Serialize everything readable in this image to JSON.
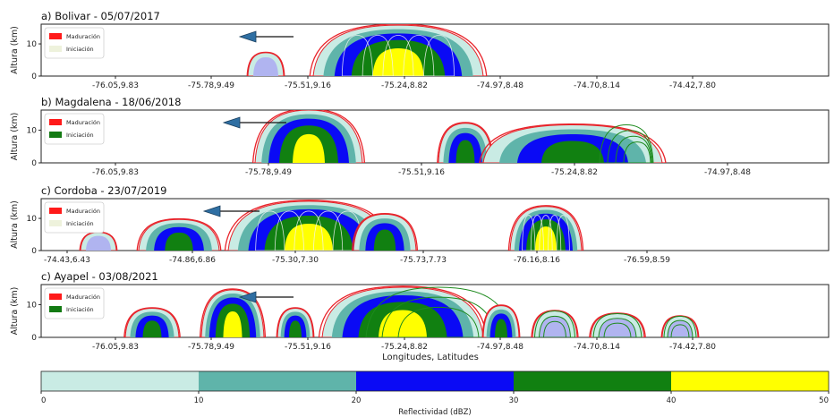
{
  "chart_data": {
    "type": "contour",
    "panels": [
      {
        "title": "a) Bolivar - 05/07/2017",
        "ylabel": "Altura (km)",
        "yticks": [
          "0",
          "10"
        ],
        "xticks": [
          "-76.05,9.83",
          "-75.78,9.49",
          "-75.51,9.16",
          "-75.24,8.82",
          "-74.97,8.48",
          "-74.70,8.14",
          "-74.42,7.80"
        ],
        "legend": [
          {
            "label": "Maduración",
            "color": "#ff1a1a"
          },
          {
            "label": "Iniciación",
            "color": "#eef2dc"
          }
        ],
        "arrow_direction": "left"
      },
      {
        "title": "b) Magdalena - 18/06/2018",
        "ylabel": "Altura (km)",
        "yticks": [
          "0",
          "10"
        ],
        "xticks": [
          "-76.05,9.83",
          "-75.78,9.49",
          "-75.51,9.16",
          "-75.24,8.82",
          "-74.97,8.48"
        ],
        "legend": [
          {
            "label": "Maduración",
            "color": "#ff1a1a"
          },
          {
            "label": "Iniciación",
            "color": "#137a13"
          }
        ],
        "arrow_direction": "left"
      },
      {
        "title": "c) Cordoba - 23/07/2019",
        "ylabel": "Altura (km)",
        "yticks": [
          "0",
          "10"
        ],
        "xticks": [
          "-74.43,6.43",
          "-74.86,6.86",
          "-75.30,7.30",
          "-75.73,7.73",
          "-76.16,8.16",
          "-76.59,8.59"
        ],
        "legend": [
          {
            "label": "Maduración",
            "color": "#ff1a1a"
          },
          {
            "label": "Iniciación",
            "color": "#eef2dc"
          }
        ],
        "arrow_direction": "left"
      },
      {
        "title": "c) Ayapel - 03/08/2021",
        "ylabel": "Altura (km)",
        "yticks": [
          "0",
          "10"
        ],
        "xticks": [
          "-76.05,9.83",
          "-75.78,9.49",
          "-75.51,9.16",
          "-75.24,8.82",
          "-74.97,8.48",
          "-74.70,8.14",
          "-74.42,7.80"
        ],
        "xlabel": "Longitudes, Latitudes",
        "legend": [
          {
            "label": "Maduración",
            "color": "#ff1a1a"
          },
          {
            "label": "Iniciación",
            "color": "#137a13"
          }
        ],
        "arrow_direction": "left"
      }
    ],
    "colorbar": {
      "label": "Reflectividad (dBZ)",
      "ticks": [
        "0",
        "10",
        "20",
        "30",
        "40",
        "50"
      ],
      "range": [
        0,
        50
      ],
      "levels": [
        {
          "from": 0,
          "to": 10,
          "color": "#c9ebe4"
        },
        {
          "from": 10,
          "to": 20,
          "color": "#5fb4aa"
        },
        {
          "from": 20,
          "to": 30,
          "color": "#0a0af5"
        },
        {
          "from": 30,
          "to": 40,
          "color": "#118011"
        },
        {
          "from": 40,
          "to": 50,
          "color": "#ffff00"
        }
      ]
    }
  }
}
